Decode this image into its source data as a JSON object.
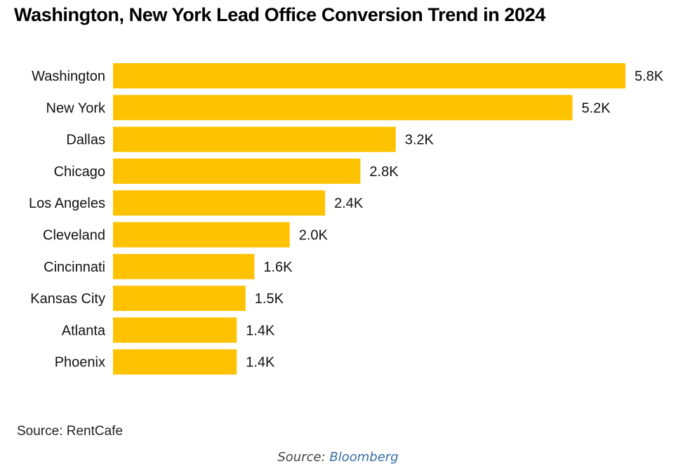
{
  "chart_data": {
    "type": "bar",
    "orientation": "horizontal",
    "title": "Washington, New York Lead Office Conversion Trend in 2024",
    "categories": [
      "Washington",
      "New York",
      "Dallas",
      "Chicago",
      "Los Angeles",
      "Cleveland",
      "Cincinnati",
      "Kansas City",
      "Atlanta",
      "Phoenix"
    ],
    "values": [
      5.8,
      5.2,
      3.2,
      2.8,
      2.4,
      2.0,
      1.6,
      1.5,
      1.4,
      1.4
    ],
    "value_labels": [
      "5.8K",
      "5.2K",
      "3.2K",
      "2.8K",
      "2.4K",
      "2.0K",
      "1.6K",
      "1.5K",
      "1.4K",
      "1.4K"
    ],
    "unit": "K",
    "xlim": [
      0,
      5.8
    ],
    "bar_color": "#ffc200",
    "grid": false,
    "legend": "none"
  },
  "source_note": "Source: RentCafe",
  "caption": {
    "prefix": "Source: ",
    "link_text": "Bloomberg",
    "link_color": "#3a6ea5"
  }
}
